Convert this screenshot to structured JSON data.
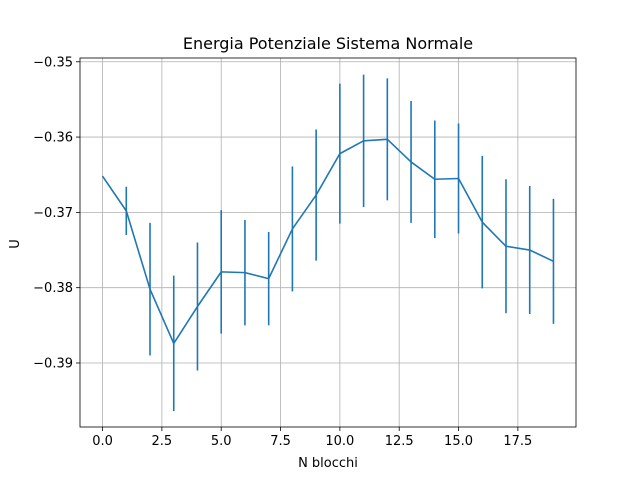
{
  "chart_data": {
    "type": "line",
    "title": "Energia Potenziale Sistema Normale",
    "xlabel": "N blocchi",
    "ylabel": "U",
    "xlim": [
      -0.95,
      19.95
    ],
    "ylim": [
      -0.3985,
      -0.3495
    ],
    "xticks": [
      0,
      2.5,
      5,
      7.5,
      10,
      12.5,
      15,
      17.5
    ],
    "xtick_labels": [
      "0.0",
      "2.5",
      "5.0",
      "7.5",
      "10.0",
      "12.5",
      "15.0",
      "17.5"
    ],
    "yticks": [
      -0.35,
      -0.36,
      -0.37,
      -0.38,
      -0.39
    ],
    "ytick_labels": [
      "−0.35",
      "−0.36",
      "−0.37",
      "−0.38",
      "−0.39"
    ],
    "grid": true,
    "series": [
      {
        "color": "#1f77b4",
        "x": [
          0,
          1,
          2,
          3,
          4,
          5,
          6,
          7,
          8,
          9,
          10,
          11,
          12,
          13,
          14,
          15,
          16,
          17,
          18,
          19
        ],
        "y": [
          -0.3652,
          -0.3698,
          -0.3802,
          -0.3874,
          -0.3825,
          -0.3779,
          -0.378,
          -0.3788,
          -0.3722,
          -0.3677,
          -0.3622,
          -0.3605,
          -0.3603,
          -0.3633,
          -0.3656,
          -0.3655,
          -0.3713,
          -0.3745,
          -0.375,
          -0.3765
        ],
        "err": [
          0,
          0.0032,
          0.0088,
          0.009,
          0.0085,
          0.0082,
          0.007,
          0.0062,
          0.0083,
          0.0087,
          0.0093,
          0.0088,
          0.0081,
          0.0081,
          0.0078,
          0.0073,
          0.0088,
          0.0089,
          0.0085,
          0.0083
        ]
      }
    ]
  }
}
